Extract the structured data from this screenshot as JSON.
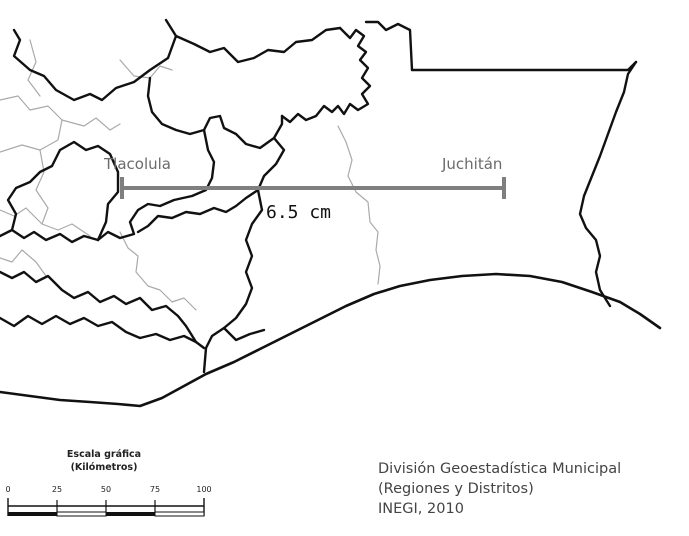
{
  "map": {
    "cities": {
      "west": "Tlacolula",
      "east": "Juchitán"
    },
    "measurement": {
      "distance_label": "6.5 cm"
    }
  },
  "scale_bar": {
    "title_line1": "Escala gráfica",
    "title_line2": "(Kilómetros)",
    "ticks": [
      "0",
      "25",
      "50",
      "75",
      "100"
    ],
    "unit": "km"
  },
  "credits": {
    "line1": "División Geoestadística Municipal",
    "line2": "(Regiones y Distritos)",
    "line3": "INEGI, 2010"
  },
  "colors": {
    "boundary": "#111111",
    "minor_boundary": "#aaaaaa",
    "measure_line": "#7f7f7f",
    "label_text": "#6b6b6b"
  }
}
